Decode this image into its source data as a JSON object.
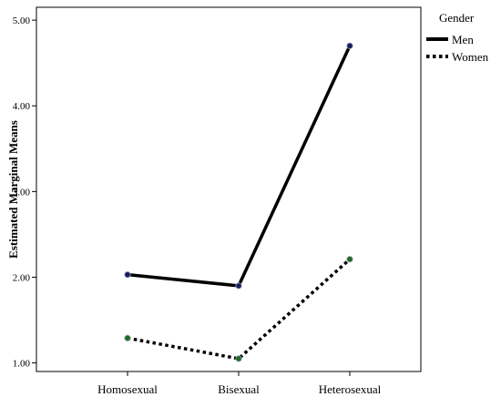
{
  "chart_data": {
    "type": "line",
    "title": "",
    "xlabel": "",
    "ylabel": "Estimated Marginal Means",
    "categories": [
      "Homosexual",
      "Bisexual",
      "Heterosexual"
    ],
    "ylim": [
      0.9,
      5.15
    ],
    "yticks": [
      1.0,
      2.0,
      3.0,
      4.0,
      5.0
    ],
    "ytick_labels": [
      "1.00",
      "2.00",
      "3.00",
      "4.00",
      "5.00"
    ],
    "grid": false,
    "legend": {
      "title": "Gender",
      "placement": "top-right outside"
    },
    "series": [
      {
        "name": "Men",
        "values": [
          2.03,
          1.9,
          4.7
        ],
        "line_style": "solid",
        "color": "#000000",
        "marker_color": "#1a1f5c"
      },
      {
        "name": "Women",
        "values": [
          1.29,
          1.05,
          2.21
        ],
        "line_style": "dotted",
        "color": "#000000",
        "marker_color": "#1f6b1f"
      }
    ]
  }
}
